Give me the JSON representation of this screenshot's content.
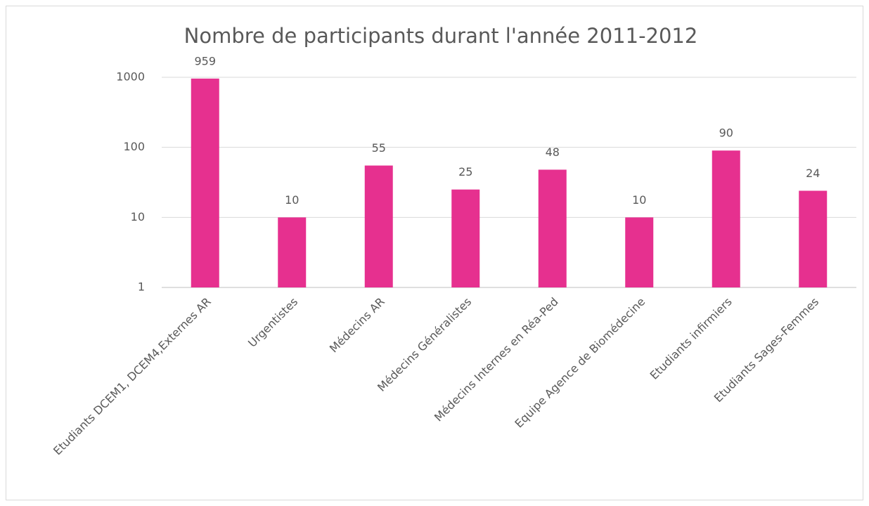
{
  "chart_data": {
    "type": "bar",
    "title": "Nombre de participants durant l'année 2011-2012",
    "categories": [
      "Etudiants DCEM1, DCEM4,Externes AR",
      "Urgentistes",
      "Médecins AR",
      "Médecins Généralistes",
      "Médecins Internes en Réa-Ped",
      "Equipe Agence de Biomédecine",
      "Etudiants infirmiers",
      "Etudiants Sages-Femmes"
    ],
    "values": [
      959,
      10,
      55,
      25,
      48,
      10,
      90,
      24
    ],
    "color": "#e6308f",
    "ylim": [
      1,
      1000
    ],
    "yticks": [
      1,
      10,
      100,
      1000
    ],
    "log_scale": true,
    "grid": true
  }
}
